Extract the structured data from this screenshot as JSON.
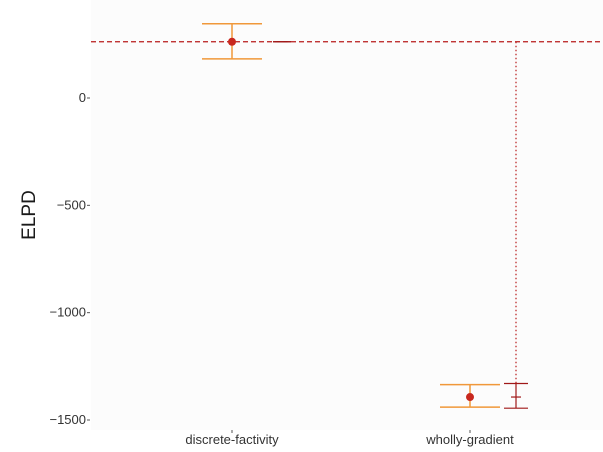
{
  "chart_data": {
    "type": "scatter",
    "title": "",
    "xlabel": "",
    "ylabel": "ELPD",
    "categories": [
      "discrete-factivity",
      "wholly-gradient"
    ],
    "ylim": [
      -1540,
      340
    ],
    "yticks": [
      0,
      -500,
      -1000,
      -1500
    ],
    "ytick_labels": [
      "0",
      "−500",
      "−1000",
      "−1500"
    ],
    "grid": false,
    "legend": "none",
    "series": [
      {
        "values": [
          262,
          -1393
        ],
        "error_low": [
          182,
          -1440
        ],
        "error_high": [
          346,
          -1335
        ]
      }
    ],
    "difference": {
      "reference": "discrete-factivity",
      "reference_value": 262,
      "values": [
        262,
        -1393
      ],
      "error_low": [
        262,
        -1445
      ],
      "error_high": [
        262,
        -1330
      ]
    },
    "colors": {
      "point": "#c8281e",
      "errorbar": "#f0983a",
      "difference": "#a01818",
      "reference_line": "#b81a1a",
      "panel": "#fcfcfc"
    }
  }
}
